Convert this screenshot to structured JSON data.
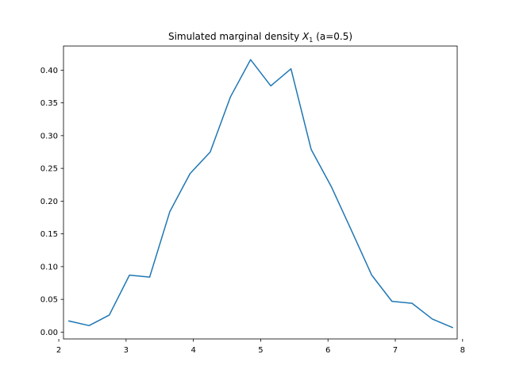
{
  "chart_data": {
    "type": "line",
    "title": {
      "prefix": "Simulated marginal density ",
      "symbol": "X",
      "subscript": "1",
      "suffix": " (a=0.5)"
    },
    "xlabel": "",
    "ylabel": "",
    "xlim": [
      2.07,
      7.92
    ],
    "ylim": [
      -0.0104,
      0.4368
    ],
    "x_ticks": [
      2,
      3,
      4,
      5,
      6,
      7,
      8
    ],
    "y_ticks": [
      0.0,
      0.05,
      0.1,
      0.15,
      0.2,
      0.25,
      0.3,
      0.35,
      0.4
    ],
    "x_tick_labels": [
      "2",
      "3",
      "4",
      "5",
      "6",
      "7",
      "8"
    ],
    "y_tick_labels": [
      "0.00",
      "0.05",
      "0.10",
      "0.15",
      "0.20",
      "0.25",
      "0.30",
      "0.35",
      "0.40"
    ],
    "grid": false,
    "legend": "none",
    "series": [
      {
        "color": "#1f77b4",
        "x": [
          2.15,
          2.45,
          2.75,
          3.05,
          3.35,
          3.65,
          3.95,
          4.25,
          4.55,
          4.85,
          5.15,
          5.45,
          5.75,
          6.05,
          6.35,
          6.65,
          6.95,
          7.25,
          7.55,
          7.85
        ],
        "y": [
          0.017,
          0.01,
          0.026,
          0.087,
          0.084,
          0.184,
          0.242,
          0.275,
          0.359,
          0.416,
          0.376,
          0.402,
          0.279,
          0.222,
          0.155,
          0.087,
          0.047,
          0.044,
          0.02,
          0.007
        ]
      }
    ]
  }
}
